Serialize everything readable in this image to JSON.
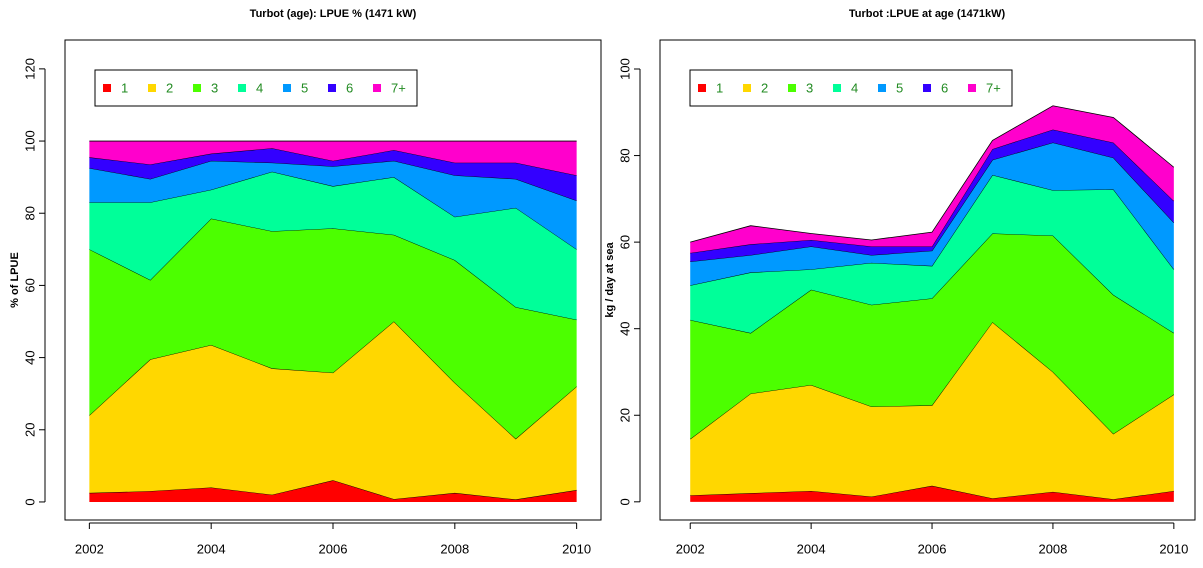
{
  "chart_data": [
    {
      "type": "stacked-area",
      "title": "Turbot (age): LPUE % (1471 kW)",
      "y_label": "% of LPUE",
      "x": [
        2002,
        2003,
        2004,
        2005,
        2006,
        2007,
        2008,
        2009,
        2010
      ],
      "xlim": [
        2001.6,
        2010.4
      ],
      "xticks": [
        2002,
        2004,
        2006,
        2008,
        2010
      ],
      "ylim": [
        -5,
        128
      ],
      "yticks": [
        0,
        20,
        40,
        60,
        80,
        100,
        120
      ],
      "legend": "top-left",
      "series": [
        {
          "name": "1",
          "color": "#ff0000",
          "values": [
            2.5,
            3,
            4,
            2,
            6,
            0.8,
            2.5,
            0.7,
            3.3
          ]
        },
        {
          "name": "2",
          "color": "#ffd700",
          "values": [
            21.5,
            36.5,
            39.5,
            35,
            29.8,
            49.2,
            30.5,
            16.8,
            28.7
          ]
        },
        {
          "name": "3",
          "color": "#4cff00",
          "values": [
            46,
            22,
            35,
            38,
            40,
            24,
            34,
            36.5,
            18.5
          ]
        },
        {
          "name": "4",
          "color": "#00ff99",
          "values": [
            13,
            21.5,
            8,
            16.5,
            11.7,
            16,
            12,
            27.5,
            19.5
          ]
        },
        {
          "name": "5",
          "color": "#0099ff",
          "values": [
            9.5,
            6.5,
            8,
            2.5,
            5.5,
            4.5,
            11.5,
            8,
            13.5
          ]
        },
        {
          "name": "6",
          "color": "#3300ff",
          "values": [
            3,
            4,
            2,
            4,
            1.5,
            3,
            3.5,
            4.5,
            7
          ]
        },
        {
          "name": "7+",
          "color": "#ff00cc",
          "values": [
            4.5,
            6.5,
            3.5,
            2,
            5.5,
            2.5,
            6,
            6,
            9.5
          ]
        }
      ]
    },
    {
      "type": "stacked-area",
      "title": "Turbot :LPUE at age (1471kW)",
      "y_label": "kg / day at sea",
      "x": [
        2002,
        2003,
        2004,
        2005,
        2006,
        2007,
        2008,
        2009,
        2010
      ],
      "xlim": [
        2001.5,
        2010.35
      ],
      "xticks": [
        2002,
        2004,
        2006,
        2008,
        2010
      ],
      "ylim": [
        -4.2,
        106.7
      ],
      "yticks": [
        0,
        20,
        40,
        60,
        80,
        100
      ],
      "legend": "top-left",
      "series": [
        {
          "name": "1",
          "color": "#ff0000",
          "values": [
            1.5,
            2,
            2.5,
            1.2,
            3.7,
            0.8,
            2.3,
            0.6,
            2.5
          ]
        },
        {
          "name": "2",
          "color": "#ffd700",
          "values": [
            13,
            23,
            24.5,
            20.8,
            18.6,
            40.7,
            27.7,
            15.1,
            22.3
          ]
        },
        {
          "name": "3",
          "color": "#4cff00",
          "values": [
            27.5,
            14,
            22,
            23.5,
            24.7,
            20.5,
            31.5,
            32.1,
            14.2
          ]
        },
        {
          "name": "4",
          "color": "#00ff99",
          "values": [
            8,
            14,
            4.7,
            9.7,
            7.5,
            13.5,
            10.5,
            24.4,
            14.7
          ]
        },
        {
          "name": "5",
          "color": "#0099ff",
          "values": [
            5.5,
            4,
            5.3,
            1.8,
            3.5,
            3.5,
            11,
            7.3,
            10.8
          ]
        },
        {
          "name": "6",
          "color": "#3300ff",
          "values": [
            2,
            2.5,
            1.5,
            2,
            1,
            2.5,
            3,
            3.5,
            5
          ]
        },
        {
          "name": "7+",
          "color": "#ff00cc",
          "values": [
            2.5,
            4.3,
            1.5,
            1.5,
            3.3,
            2,
            5.5,
            5.8,
            7.8
          ]
        }
      ]
    }
  ]
}
